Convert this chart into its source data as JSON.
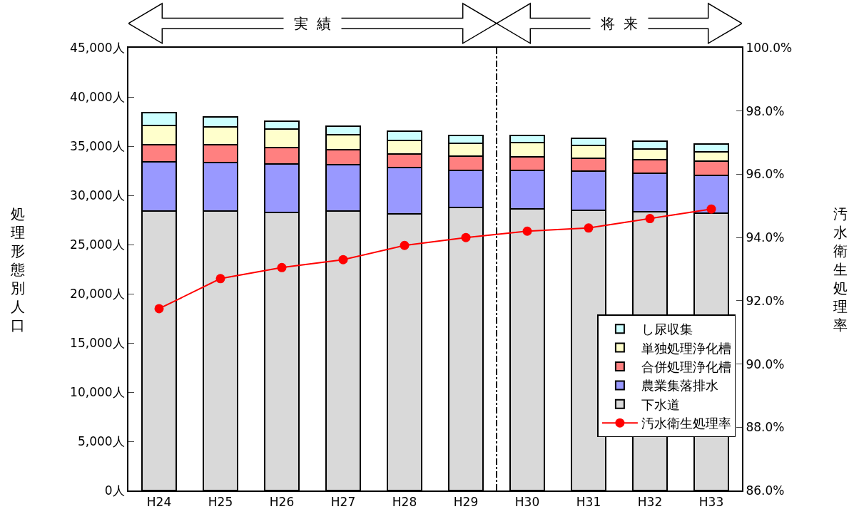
{
  "chart_data": {
    "type": "bar",
    "stacked": true,
    "categories": [
      "H24",
      "H25",
      "H26",
      "H27",
      "H28",
      "H29",
      "H30",
      "H31",
      "H32",
      "H33"
    ],
    "ylabel": "処理形態別人口",
    "y2label": "汚水衛生処理率",
    "series": [
      {
        "name": "下水道",
        "color": "#d9d9d9",
        "values": [
          28400,
          28400,
          28250,
          28400,
          28100,
          28770,
          28650,
          28480,
          28350,
          28200
        ]
      },
      {
        "name": "農業集落排水",
        "color": "#9999ff",
        "values": [
          4980,
          4950,
          4930,
          4730,
          4700,
          3790,
          3870,
          3960,
          3900,
          3850
        ]
      },
      {
        "name": "合併処理浄化槽",
        "color": "#ff8080",
        "values": [
          1800,
          1770,
          1670,
          1480,
          1400,
          1400,
          1400,
          1350,
          1380,
          1400
        ]
      },
      {
        "name": "単独処理浄化槽",
        "color": "#ffffcc",
        "values": [
          1950,
          1840,
          1860,
          1570,
          1400,
          1350,
          1430,
          1300,
          1110,
          1000
        ]
      },
      {
        "name": "し尿収集",
        "color": "#ccffff",
        "values": [
          1300,
          1000,
          840,
          820,
          920,
          780,
          750,
          700,
          780,
          750
        ]
      },
      {
        "name": "汚水衛生処理率",
        "type": "line",
        "axis": "y2",
        "color": "#ff0000",
        "marker": "circle",
        "values": [
          91.75,
          92.7,
          93.05,
          93.3,
          93.75,
          94.0,
          94.2,
          94.3,
          94.6,
          94.9
        ]
      }
    ],
    "ylim": [
      0,
      45000
    ],
    "yticks": [
      {
        "value": 0,
        "label": "0人"
      },
      {
        "value": 5000,
        "label": "5,000人"
      },
      {
        "value": 10000,
        "label": "10,000人"
      },
      {
        "value": 15000,
        "label": "15,000人"
      },
      {
        "value": 20000,
        "label": "20,000人"
      },
      {
        "value": 25000,
        "label": "25,000人"
      },
      {
        "value": 30000,
        "label": "30,000人"
      },
      {
        "value": 35000,
        "label": "35,000人"
      },
      {
        "value": 40000,
        "label": "40,000人"
      },
      {
        "value": 45000,
        "label": "45,000人"
      }
    ],
    "y2lim": [
      86,
      100
    ],
    "y2ticks": [
      {
        "value": 86,
        "label": "86.0%"
      },
      {
        "value": 88,
        "label": "88.0%"
      },
      {
        "value": 90,
        "label": "90.0%"
      },
      {
        "value": 92,
        "label": "92.0%"
      },
      {
        "value": 94,
        "label": "94.0%"
      },
      {
        "value": 96,
        "label": "96.0%"
      },
      {
        "value": 98,
        "label": "98.0%"
      },
      {
        "value": 100,
        "label": "100.0%"
      }
    ],
    "annotations": [
      "実績",
      "将来"
    ],
    "legend": "bottom right"
  }
}
